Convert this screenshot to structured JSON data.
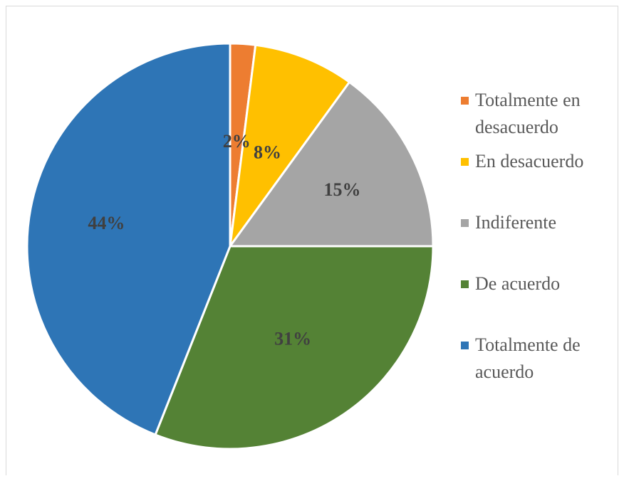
{
  "chart_data": {
    "type": "pie",
    "slices": [
      {
        "name": "Totalmente en desacuerdo",
        "value": 2,
        "label": "2%",
        "color": "#ED7D31"
      },
      {
        "name": "En desacuerdo",
        "value": 8,
        "label": "8%",
        "color": "#FFC000"
      },
      {
        "name": "Indiferente",
        "value": 15,
        "label": "15%",
        "color": "#A5A5A5"
      },
      {
        "name": "De acuerdo",
        "value": 31,
        "label": "31%",
        "color": "#548235"
      },
      {
        "name": "Totalmente de acuerdo",
        "value": 44,
        "label": "44%",
        "color": "#2E75B6"
      }
    ],
    "legend_position": "right",
    "start": "top, clockwise"
  },
  "legend": [
    {
      "line1": "Totalmente en",
      "line2": "desacuerdo",
      "color": "#ED7D31"
    },
    {
      "line1": "En desacuerdo",
      "line2": "",
      "color": "#FFC000"
    },
    {
      "line1": "Indiferente",
      "line2": "",
      "color": "#A5A5A5"
    },
    {
      "line1": "De acuerdo",
      "line2": "",
      "color": "#548235"
    },
    {
      "line1": "Totalmente de",
      "line2": "acuerdo",
      "color": "#2E75B6"
    }
  ]
}
